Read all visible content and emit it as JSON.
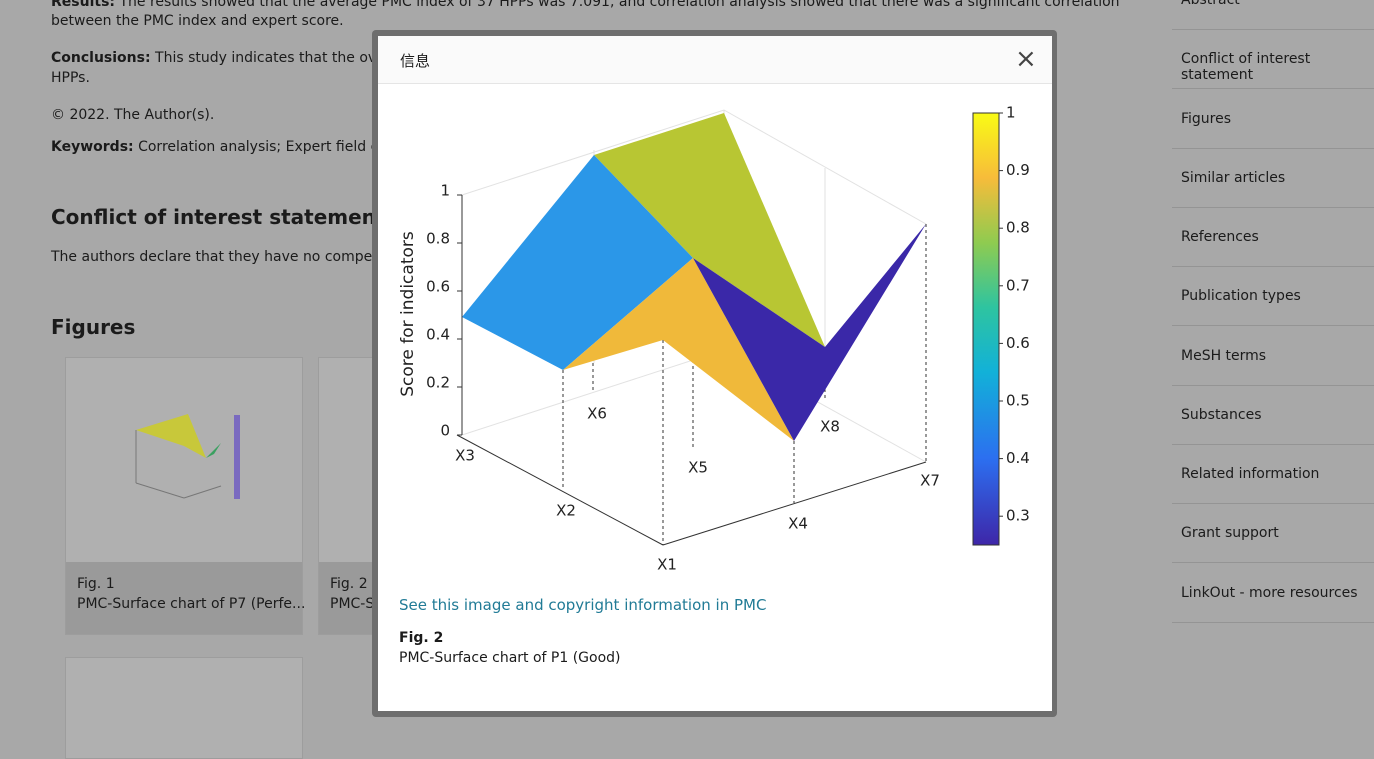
{
  "article": {
    "results_label": "Results:",
    "results_line1": "The results showed that the average PMC index of 37 HPPs was 7.091, and correlation analysis showed that there was a significant correlation",
    "results_line2": "between the PMC index and expert score.",
    "conclusions_label": "Conclusions:",
    "conclusions_line1": "This study indicates that the overall",
    "conclusions_line2": "HPPs.",
    "copyright": "© 2022. The Author(s).",
    "keywords_label": "Keywords:",
    "keywords_text": "Correlation analysis; Expert field evalua",
    "conflict_heading": "Conflict of interest statement",
    "conflict_text": "The authors declare that they have no competing i",
    "figures_heading": "Figures",
    "cards": [
      {
        "label": "Fig. 1",
        "caption": "PMC-Surface chart of P7 (Perfe..."
      },
      {
        "label": "Fig. 2",
        "caption": "PMC-Su"
      }
    ]
  },
  "sidebar": [
    "Abstract",
    "Conflict of interest statement",
    "Figures",
    "Similar articles",
    "References",
    "Publication types",
    "MeSH terms",
    "Substances",
    "Related information",
    "Grant support",
    "LinkOut - more resources"
  ],
  "modal": {
    "title": "信息",
    "close": "×",
    "figure": {
      "y_label": "Score for indicators",
      "zticks": [
        0,
        0.2,
        0.4,
        0.6,
        0.8,
        1
      ],
      "x_labels": [
        "X3",
        "X2",
        "X1",
        "X6",
        "X5",
        "X4",
        "X8",
        "X7"
      ],
      "colorbar_ticks": [
        0.3,
        0.4,
        0.5,
        0.6,
        0.7,
        0.8,
        0.9,
        1
      ]
    },
    "link": "See this image and copyright information in PMC",
    "fig_label": "Fig. 2",
    "caption": "PMC-Surface chart of P1 (Good)"
  }
}
